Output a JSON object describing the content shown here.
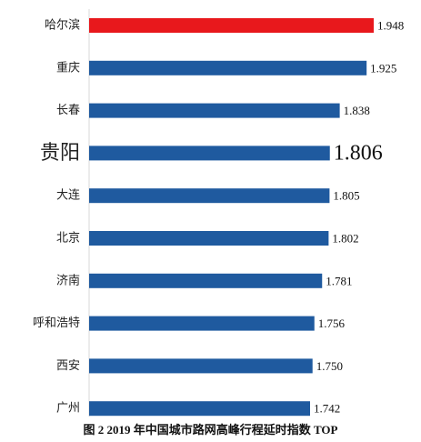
{
  "chart_data": {
    "type": "bar",
    "orientation": "horizontal",
    "categories": [
      "哈尔滨",
      "重庆",
      "长春",
      "贵阳",
      "大连",
      "北京",
      "济南",
      "呼和浩特",
      "西安",
      "广州"
    ],
    "values": [
      1.948,
      1.925,
      1.838,
      1.806,
      1.805,
      1.802,
      1.781,
      1.756,
      1.75,
      1.742
    ],
    "value_labels": [
      "1.948",
      "1.925",
      "1.838",
      "1.806",
      "1.805",
      "1.802",
      "1.781",
      "1.756",
      "1.750",
      "1.742"
    ],
    "highlighted_category": "哈尔滨",
    "emphasized_category": "贵阳",
    "colors": {
      "bar": "#1f5a9f",
      "highlight": "#e8181c"
    },
    "grid": false,
    "legend": "none",
    "title": "图 2  2019 年中国城市路网高峰行程延时指数 TOP"
  }
}
